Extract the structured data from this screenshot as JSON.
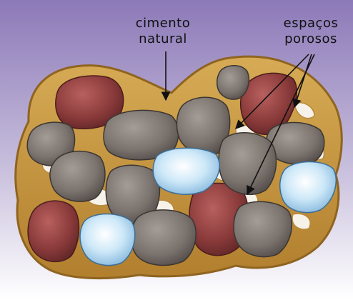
{
  "labels": {
    "cement_line1": "cimento",
    "cement_line2": "natural",
    "pores_line1": "espaços",
    "pores_line2": "porosos"
  },
  "colors": {
    "background_top": "#8f7dbb",
    "background_bottom": "#ffffff",
    "cement": "#c89a44",
    "cement_dark": "#9e7329",
    "pore": "#f7f4ee",
    "rock_gray": "#7b736e",
    "rock_red": "#8a3a3a",
    "crystal_blue": "#9fd0ef"
  },
  "icons": {
    "arrow": "straight-arrow-icon"
  }
}
